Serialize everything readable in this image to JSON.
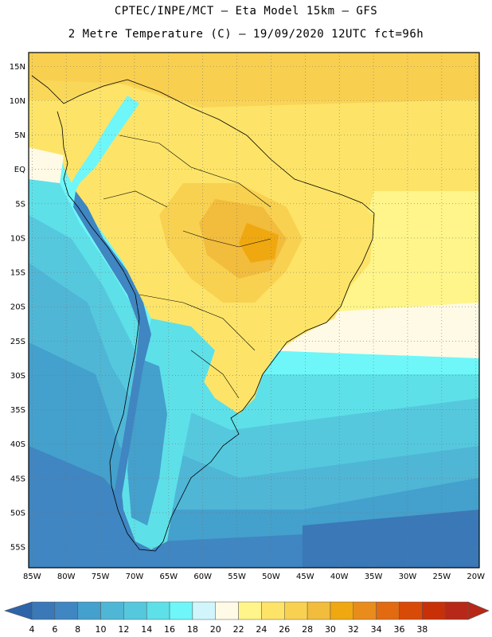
{
  "header": {
    "line1": "CPTEC/INPE/MCT –  Eta Model 15km – GFS",
    "line2": "2 Metre Temperature (C) – 19/09/2020 12UTC fct=96h"
  },
  "map": {
    "lon_range": [
      -85.5,
      -19.5
    ],
    "lat_range": [
      -58,
      17
    ],
    "lon_ticks": [
      {
        "v": -85,
        "label": "85W"
      },
      {
        "v": -80,
        "label": "80W"
      },
      {
        "v": -75,
        "label": "75W"
      },
      {
        "v": -70,
        "label": "70W"
      },
      {
        "v": -65,
        "label": "65W"
      },
      {
        "v": -60,
        "label": "60W"
      },
      {
        "v": -55,
        "label": "55W"
      },
      {
        "v": -50,
        "label": "50W"
      },
      {
        "v": -45,
        "label": "45W"
      },
      {
        "v": -40,
        "label": "40W"
      },
      {
        "v": -35,
        "label": "35W"
      },
      {
        "v": -30,
        "label": "30W"
      },
      {
        "v": -25,
        "label": "25W"
      },
      {
        "v": -20,
        "label": "20W"
      }
    ],
    "lat_ticks": [
      {
        "v": 15,
        "label": "15N"
      },
      {
        "v": 10,
        "label": "10N"
      },
      {
        "v": 5,
        "label": "5N"
      },
      {
        "v": 0,
        "label": "EQ"
      },
      {
        "v": -5,
        "label": "5S"
      },
      {
        "v": -10,
        "label": "10S"
      },
      {
        "v": -15,
        "label": "15S"
      },
      {
        "v": -20,
        "label": "20S"
      },
      {
        "v": -25,
        "label": "25S"
      },
      {
        "v": -30,
        "label": "30S"
      },
      {
        "v": -35,
        "label": "35S"
      },
      {
        "v": -40,
        "label": "40S"
      },
      {
        "v": -45,
        "label": "45S"
      },
      {
        "v": -50,
        "label": "50S"
      },
      {
        "v": -55,
        "label": "55S"
      }
    ],
    "grid": true
  },
  "colorbar": {
    "labels": [
      "4",
      "6",
      "8",
      "10",
      "12",
      "14",
      "16",
      "18",
      "20",
      "22",
      "24",
      "26",
      "28",
      "30",
      "32",
      "34",
      "36",
      "38"
    ],
    "colors": [
      "#3a78b8",
      "#3f86c2",
      "#44a0cc",
      "#4fb6d6",
      "#55c8de",
      "#5ee0e8",
      "#6ff6f8",
      "#d0f6fc",
      "#fffae6",
      "#fff58a",
      "#fde468",
      "#f8d150",
      "#f2bc3c",
      "#f0a810",
      "#ea8c1c",
      "#e26a10",
      "#d84a08",
      "#c83008",
      "#b82818"
    ],
    "min_color": "#2e64a8",
    "max_color": "#b82818"
  },
  "chart_data": {
    "type": "heatmap",
    "title": "2 Metre Temperature (C) – 19/09/2020 12UTC fct=96h",
    "x_range": [
      -85.5,
      -19.5
    ],
    "y_range": [
      -58,
      17
    ],
    "legend": "bottom",
    "colorbar_levels": [
      4,
      6,
      8,
      10,
      12,
      14,
      16,
      18,
      20,
      22,
      24,
      26,
      28,
      30,
      32,
      34,
      36,
      38
    ]
  }
}
